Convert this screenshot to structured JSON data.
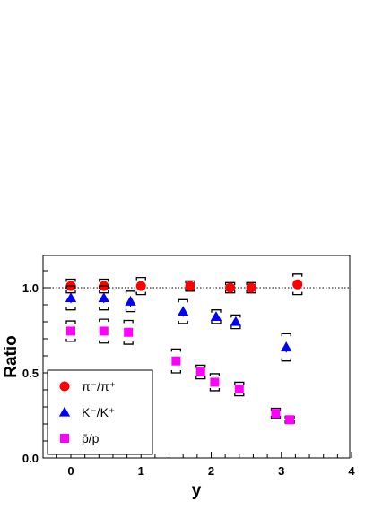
{
  "chart_data": {
    "type": "scatter",
    "title": "",
    "xlabel": "y",
    "ylabel": "Ratio",
    "xlim": [
      -0.4,
      4.0
    ],
    "ylim": [
      0.0,
      1.2
    ],
    "x_ticks": [
      0,
      1,
      2,
      3,
      4
    ],
    "x_tick_labels": [
      "0",
      "1",
      "2",
      "3",
      "4"
    ],
    "y_ticks": [
      0.0,
      0.5,
      1.0
    ],
    "y_tick_labels": [
      "0.0",
      "0.5",
      "1.0"
    ],
    "reference_line": 1.0,
    "grid": false,
    "legend_position": "bottom-left",
    "series": [
      {
        "name": "π⁻/π⁺",
        "marker": "circle",
        "color": "#ff0000",
        "points": [
          {
            "x": 0.0,
            "y": 1.01,
            "err": 0.02,
            "sys": 0.04
          },
          {
            "x": 0.47,
            "y": 1.01,
            "err": 0.02,
            "sys": 0.04
          },
          {
            "x": 1.0,
            "y": 1.01,
            "err": 0.02,
            "sys": 0.05
          },
          {
            "x": 1.7,
            "y": 1.01,
            "err": 0.02,
            "sys": 0.03
          },
          {
            "x": 2.27,
            "y": 1.0,
            "err": 0.02,
            "sys": 0.03
          },
          {
            "x": 2.57,
            "y": 1.0,
            "err": 0.02,
            "sys": 0.03
          },
          {
            "x": 3.23,
            "y": 1.02,
            "err": 0.02,
            "sys": 0.06
          }
        ]
      },
      {
        "name": "K⁻/K⁺",
        "marker": "triangle",
        "color": "#0000ff",
        "points": [
          {
            "x": 0.0,
            "y": 0.94,
            "err": 0.03,
            "sys": 0.07
          },
          {
            "x": 0.47,
            "y": 0.94,
            "err": 0.03,
            "sys": 0.07
          },
          {
            "x": 0.85,
            "y": 0.92,
            "err": 0.03,
            "sys": 0.06
          },
          {
            "x": 1.6,
            "y": 0.86,
            "err": 0.03,
            "sys": 0.07
          },
          {
            "x": 2.07,
            "y": 0.83,
            "err": 0.02,
            "sys": 0.04
          },
          {
            "x": 2.35,
            "y": 0.8,
            "err": 0.02,
            "sys": 0.04
          },
          {
            "x": 3.07,
            "y": 0.65,
            "err": 0.03,
            "sys": 0.08
          }
        ]
      },
      {
        "name": "p̄/p",
        "marker": "square",
        "color": "#ff00ff",
        "points": [
          {
            "x": 0.0,
            "y": 0.745,
            "err": 0.025,
            "sys": 0.06
          },
          {
            "x": 0.47,
            "y": 0.745,
            "err": 0.025,
            "sys": 0.07
          },
          {
            "x": 0.82,
            "y": 0.738,
            "err": 0.025,
            "sys": 0.07
          },
          {
            "x": 1.5,
            "y": 0.57,
            "err": 0.025,
            "sys": 0.07
          },
          {
            "x": 1.85,
            "y": 0.505,
            "err": 0.02,
            "sys": 0.04
          },
          {
            "x": 2.05,
            "y": 0.445,
            "err": 0.02,
            "sys": 0.05
          },
          {
            "x": 2.4,
            "y": 0.405,
            "err": 0.02,
            "sys": 0.04
          },
          {
            "x": 2.92,
            "y": 0.262,
            "err": 0.015,
            "sys": 0.03
          },
          {
            "x": 3.12,
            "y": 0.225,
            "err": 0.015,
            "sys": 0.02
          }
        ]
      }
    ]
  }
}
